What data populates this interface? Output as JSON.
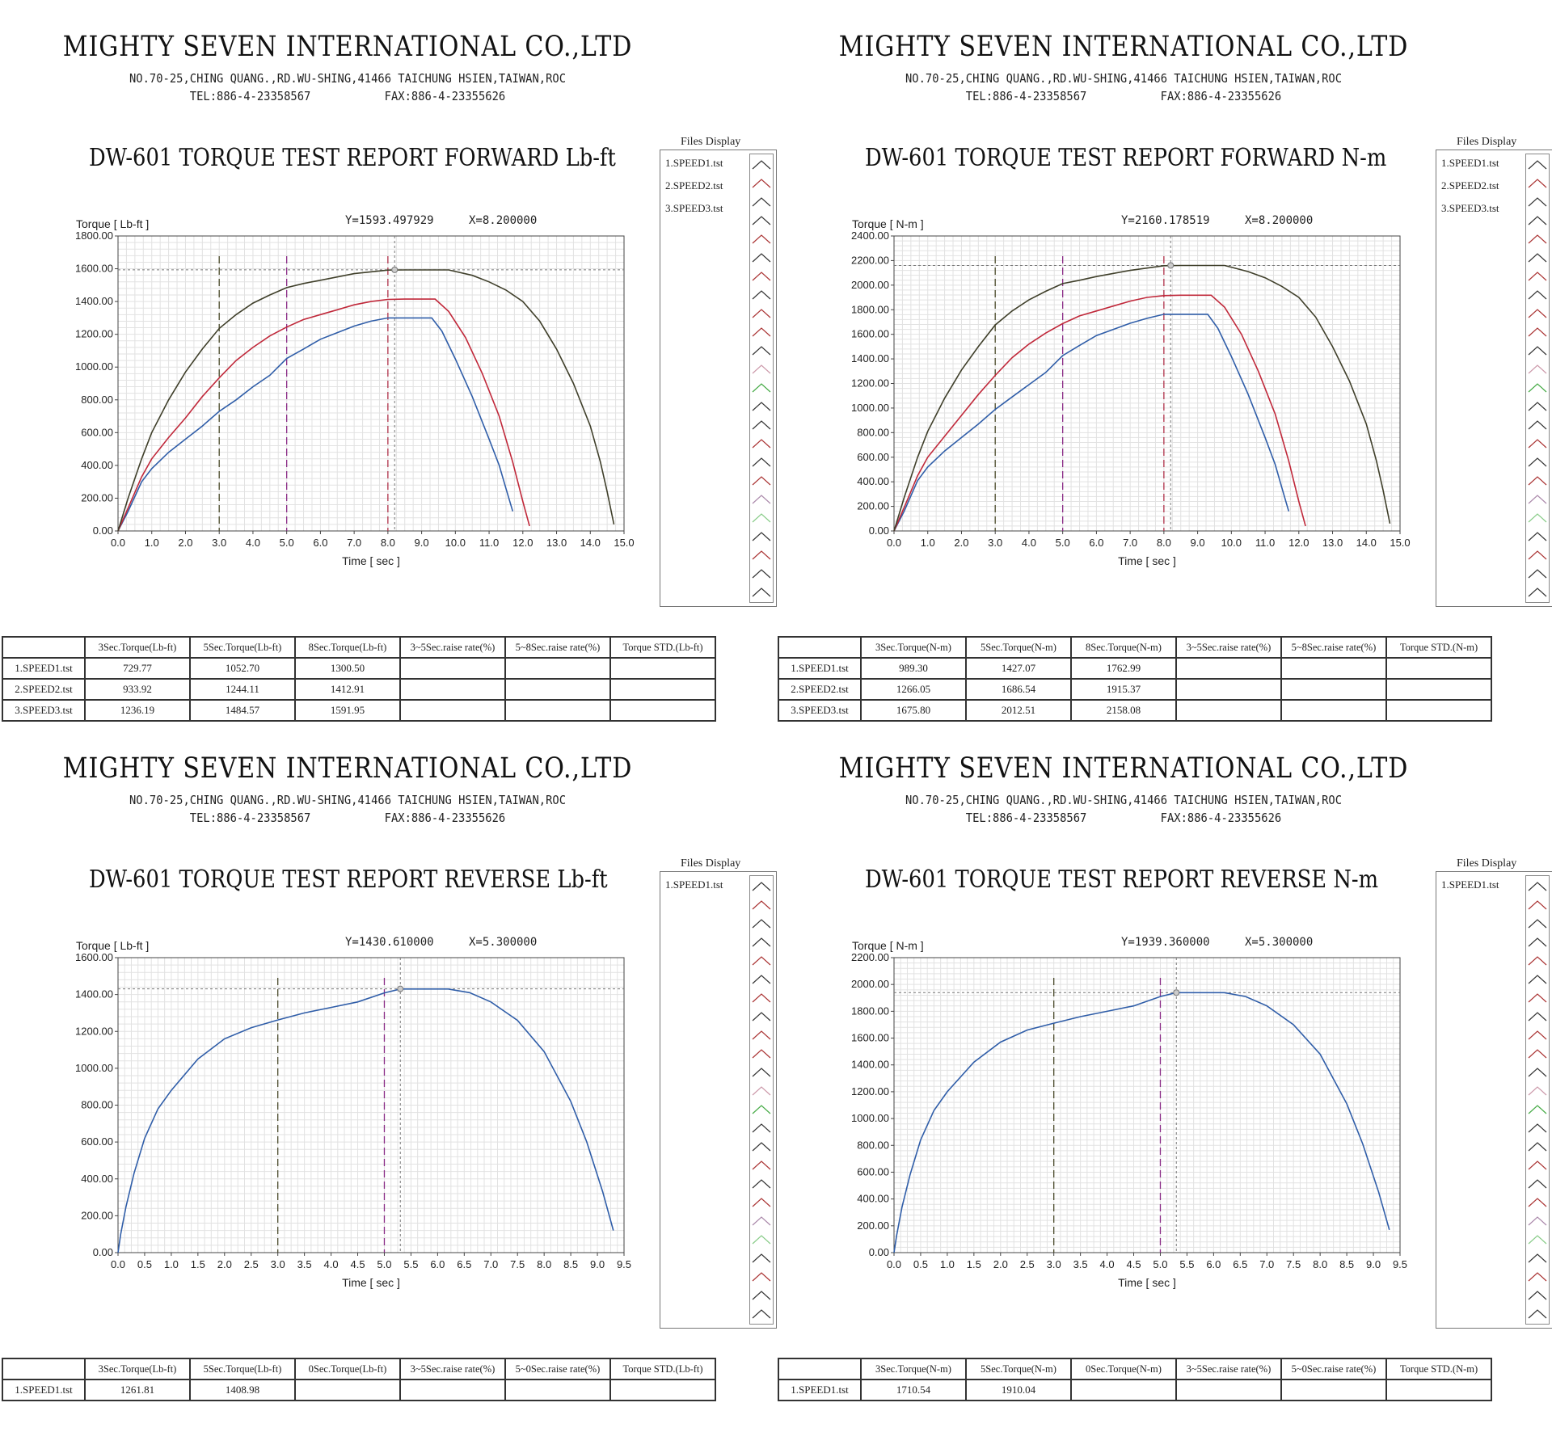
{
  "company": {
    "name": "MIGHTY SEVEN INTERNATIONAL CO.,LTD",
    "address": "NO.70-25,CHING QUANG.,RD.WU-SHING,41466 TAICHUNG HSIEN,TAIWAN,ROC",
    "tel": "TEL:886-4-23358567",
    "fax": "FAX:886-4-23355626"
  },
  "files_display_label": "Files Display",
  "panels": [
    {
      "title": "DW-601 TORQUE TEST REPORT FORWARD Lb-ft",
      "readout_y": "Y=1593.497929",
      "readout_x": "X=8.200000",
      "files": [
        "1.SPEED1.tst",
        "2.SPEED2.tst",
        "3.SPEED3.tst"
      ],
      "table": {
        "headers": [
          "",
          "3Sec.Torque(Lb-ft)",
          "5Sec.Torque(Lb-ft)",
          "8Sec.Torque(Lb-ft)",
          "3~5Sec.raise rate(%)",
          "5~8Sec.raise rate(%)",
          "Torque STD.(Lb-ft)"
        ],
        "rows": [
          [
            "1.SPEED1.tst",
            "729.77",
            "1052.70",
            "1300.50",
            "",
            "",
            ""
          ],
          [
            "2.SPEED2.tst",
            "933.92",
            "1244.11",
            "1412.91",
            "",
            "",
            ""
          ],
          [
            "3.SPEED3.tst",
            "1236.19",
            "1484.57",
            "1591.95",
            "",
            "",
            ""
          ]
        ]
      }
    },
    {
      "title": "DW-601 TORQUE TEST REPORT FORWARD N-m",
      "readout_y": "Y=2160.178519",
      "readout_x": "X=8.200000",
      "files": [
        "1.SPEED1.tst",
        "2.SPEED2.tst",
        "3.SPEED3.tst"
      ],
      "table": {
        "headers": [
          "",
          "3Sec.Torque(N-m)",
          "5Sec.Torque(N-m)",
          "8Sec.Torque(N-m)",
          "3~5Sec.raise rate(%)",
          "5~8Sec.raise rate(%)",
          "Torque STD.(N-m)"
        ],
        "rows": [
          [
            "1.SPEED1.tst",
            "989.30",
            "1427.07",
            "1762.99",
            "",
            "",
            ""
          ],
          [
            "2.SPEED2.tst",
            "1266.05",
            "1686.54",
            "1915.37",
            "",
            "",
            ""
          ],
          [
            "3.SPEED3.tst",
            "1675.80",
            "2012.51",
            "2158.08",
            "",
            "",
            ""
          ]
        ]
      }
    },
    {
      "title": "DW-601 TORQUE TEST REPORT REVERSE Lb-ft",
      "readout_y": "Y=1430.610000",
      "readout_x": "X=5.300000",
      "files": [
        "1.SPEED1.tst"
      ],
      "table": {
        "headers": [
          "",
          "3Sec.Torque(Lb-ft)",
          "5Sec.Torque(Lb-ft)",
          "0Sec.Torque(Lb-ft)",
          "3~5Sec.raise rate(%)",
          "5~0Sec.raise rate(%)",
          "Torque STD.(Lb-ft)"
        ],
        "rows": [
          [
            "1.SPEED1.tst",
            "1261.81",
            "1408.98",
            "",
            "",
            "",
            ""
          ]
        ]
      }
    },
    {
      "title": "DW-601 TORQUE TEST REPORT REVERSE N-m",
      "readout_y": "Y=1939.360000",
      "readout_x": "X=5.300000",
      "files": [
        "1.SPEED1.tst"
      ],
      "table": {
        "headers": [
          "",
          "3Sec.Torque(N-m)",
          "5Sec.Torque(N-m)",
          "0Sec.Torque(N-m)",
          "3~5Sec.raise rate(%)",
          "5~0Sec.raise rate(%)",
          "Torque STD.(N-m)"
        ],
        "rows": [
          [
            "1.SPEED1.tst",
            "1710.54",
            "1910.04",
            "",
            "",
            "",
            ""
          ]
        ]
      }
    }
  ],
  "chart_data": [
    {
      "type": "line",
      "ylabel": "Torque [ Lb-ft ]",
      "xlabel": "Time [ sec ]",
      "xlim": [
        0,
        15
      ],
      "ylim": [
        0,
        1800
      ],
      "xticks": [
        "0.0",
        "1.0",
        "2.0",
        "3.0",
        "4.0",
        "5.0",
        "6.0",
        "7.0",
        "8.0",
        "9.0",
        "10.0",
        "11.0",
        "12.0",
        "13.0",
        "14.0",
        "15.0"
      ],
      "yticks": [
        "0.00",
        "200.00",
        "400.00",
        "600.00",
        "800.00",
        "1000.00",
        "1200.00",
        "1400.00",
        "1600.00",
        "1800.00"
      ],
      "markers": [
        3,
        5,
        8
      ],
      "crosshair": {
        "x": 8.2,
        "y": 1593.5
      },
      "colors": [
        "#2f5da8",
        "#c0283a",
        "#3f3f2a"
      ],
      "series": [
        {
          "x": [
            0,
            0.3,
            0.7,
            1,
            1.5,
            2,
            2.5,
            3,
            3.5,
            4,
            4.5,
            5,
            5.5,
            6,
            6.5,
            7,
            7.5,
            8,
            8.5,
            9,
            9.3,
            9.6,
            10,
            10.5,
            11,
            11.3,
            11.5,
            11.7
          ],
          "y": [
            0,
            120,
            300,
            380,
            480,
            560,
            640,
            730,
            800,
            880,
            950,
            1053,
            1110,
            1170,
            1210,
            1250,
            1280,
            1300,
            1300,
            1300,
            1300,
            1220,
            1050,
            820,
            560,
            400,
            260,
            120
          ]
        },
        {
          "x": [
            0,
            0.3,
            0.7,
            1,
            1.5,
            2,
            2.5,
            3,
            3.5,
            4,
            4.5,
            5,
            5.5,
            6,
            6.5,
            7,
            7.5,
            8,
            8.5,
            9,
            9.4,
            9.8,
            10.3,
            10.8,
            11.3,
            11.7,
            12,
            12.2
          ],
          "y": [
            0,
            140,
            330,
            440,
            570,
            690,
            820,
            934,
            1040,
            1120,
            1190,
            1244,
            1290,
            1320,
            1350,
            1380,
            1400,
            1413,
            1415,
            1415,
            1415,
            1340,
            1180,
            960,
            700,
            420,
            180,
            30
          ]
        },
        {
          "x": [
            0,
            0.3,
            0.7,
            1,
            1.5,
            2,
            2.5,
            3,
            3.5,
            4,
            4.5,
            5,
            5.5,
            6,
            7,
            8,
            8.5,
            9,
            9.8,
            10.5,
            11,
            11.5,
            12,
            12.5,
            13,
            13.5,
            14,
            14.3,
            14.5,
            14.7
          ],
          "y": [
            0,
            200,
            440,
            600,
            800,
            970,
            1110,
            1236,
            1320,
            1390,
            1440,
            1485,
            1510,
            1530,
            1570,
            1592,
            1593,
            1593,
            1593,
            1560,
            1520,
            1470,
            1400,
            1280,
            1110,
            900,
            640,
            420,
            240,
            40
          ]
        }
      ]
    },
    {
      "type": "line",
      "ylabel": "Torque [ N-m ]",
      "xlabel": "Time [ sec ]",
      "xlim": [
        0,
        15
      ],
      "ylim": [
        0,
        2400
      ],
      "xticks": [
        "0.0",
        "1.0",
        "2.0",
        "3.0",
        "4.0",
        "5.0",
        "6.0",
        "7.0",
        "8.0",
        "9.0",
        "10.0",
        "11.0",
        "12.0",
        "13.0",
        "14.0",
        "15.0"
      ],
      "yticks": [
        "0.00",
        "200.00",
        "400.00",
        "600.00",
        "800.00",
        "1000.00",
        "1200.00",
        "1400.00",
        "1600.00",
        "1800.00",
        "2000.00",
        "2200.00",
        "2400.00"
      ],
      "markers": [
        3,
        5,
        8
      ],
      "crosshair": {
        "x": 8.2,
        "y": 2160.18
      },
      "colors": [
        "#2f5da8",
        "#c0283a",
        "#3f3f2a"
      ],
      "series": [
        {
          "x": [
            0,
            0.3,
            0.7,
            1,
            1.5,
            2,
            2.5,
            3,
            3.5,
            4,
            4.5,
            5,
            5.5,
            6,
            6.5,
            7,
            7.5,
            8,
            8.5,
            9,
            9.3,
            9.6,
            10,
            10.5,
            11,
            11.3,
            11.5,
            11.7
          ],
          "y": [
            0,
            160,
            410,
            520,
            650,
            760,
            870,
            989,
            1090,
            1190,
            1290,
            1427,
            1510,
            1590,
            1640,
            1690,
            1730,
            1763,
            1763,
            1763,
            1763,
            1650,
            1420,
            1110,
            760,
            540,
            350,
            160
          ]
        },
        {
          "x": [
            0,
            0.3,
            0.7,
            1,
            1.5,
            2,
            2.5,
            3,
            3.5,
            4,
            4.5,
            5,
            5.5,
            6,
            6.5,
            7,
            7.5,
            8,
            8.5,
            9,
            9.4,
            9.8,
            10.3,
            10.8,
            11.3,
            11.7,
            12,
            12.2
          ],
          "y": [
            0,
            190,
            450,
            600,
            770,
            940,
            1110,
            1266,
            1410,
            1520,
            1610,
            1687,
            1750,
            1790,
            1830,
            1870,
            1900,
            1915,
            1918,
            1918,
            1918,
            1820,
            1600,
            1300,
            950,
            570,
            240,
            40
          ]
        },
        {
          "x": [
            0,
            0.3,
            0.7,
            1,
            1.5,
            2,
            2.5,
            3,
            3.5,
            4,
            4.5,
            5,
            5.5,
            6,
            7,
            8,
            8.5,
            9,
            9.8,
            10.5,
            11,
            11.5,
            12,
            12.5,
            13,
            13.5,
            14,
            14.3,
            14.5,
            14.7
          ],
          "y": [
            0,
            270,
            600,
            810,
            1080,
            1310,
            1500,
            1676,
            1790,
            1880,
            1950,
            2013,
            2040,
            2070,
            2120,
            2158,
            2160,
            2160,
            2160,
            2110,
            2060,
            1990,
            1900,
            1740,
            1500,
            1220,
            870,
            570,
            330,
            60
          ]
        }
      ]
    },
    {
      "type": "line",
      "ylabel": "Torque [ Lb-ft ]",
      "xlabel": "Time [ sec ]",
      "xlim": [
        0,
        9.5
      ],
      "ylim": [
        0,
        1600
      ],
      "xticks": [
        "0.0",
        "0.5",
        "1.0",
        "1.5",
        "2.0",
        "2.5",
        "3.0",
        "3.5",
        "4.0",
        "4.5",
        "5.0",
        "5.5",
        "6.0",
        "6.5",
        "7.0",
        "7.5",
        "8.0",
        "8.5",
        "9.0",
        "9.5"
      ],
      "yticks": [
        "0.00",
        "200.00",
        "400.00",
        "600.00",
        "800.00",
        "1000.00",
        "1200.00",
        "1400.00",
        "1600.00"
      ],
      "markers": [
        3,
        5
      ],
      "crosshair": {
        "x": 5.3,
        "y": 1430.61
      },
      "colors": [
        "#2f5da8"
      ],
      "series": [
        {
          "x": [
            0,
            0.05,
            0.15,
            0.3,
            0.5,
            0.75,
            1,
            1.5,
            2,
            2.5,
            3,
            3.5,
            4,
            4.5,
            5,
            5.3,
            5.7,
            6.2,
            6.6,
            7,
            7.5,
            8,
            8.5,
            8.8,
            9.1,
            9.3
          ],
          "y": [
            0,
            100,
            250,
            430,
            620,
            780,
            880,
            1050,
            1160,
            1220,
            1262,
            1300,
            1330,
            1360,
            1409,
            1430,
            1430,
            1430,
            1410,
            1360,
            1260,
            1090,
            820,
            600,
            330,
            120
          ]
        }
      ]
    },
    {
      "type": "line",
      "ylabel": "Torque [ N-m ]",
      "xlabel": "Time [ sec ]",
      "xlim": [
        0,
        9.5
      ],
      "ylim": [
        0,
        2200
      ],
      "xticks": [
        "0.0",
        "0.5",
        "1.0",
        "1.5",
        "2.0",
        "2.5",
        "3.0",
        "3.5",
        "4.0",
        "4.5",
        "5.0",
        "5.5",
        "6.0",
        "6.5",
        "7.0",
        "7.5",
        "8.0",
        "8.5",
        "9.0",
        "9.5"
      ],
      "yticks": [
        "0.00",
        "200.00",
        "400.00",
        "600.00",
        "800.00",
        "1000.00",
        "1200.00",
        "1400.00",
        "1600.00",
        "1800.00",
        "2000.00",
        "2200.00"
      ],
      "markers": [
        3,
        5
      ],
      "crosshair": {
        "x": 5.3,
        "y": 1939.36
      },
      "colors": [
        "#2f5da8"
      ],
      "series": [
        {
          "x": [
            0,
            0.05,
            0.15,
            0.3,
            0.5,
            0.75,
            1,
            1.5,
            2,
            2.5,
            3,
            3.5,
            4,
            4.5,
            5,
            5.3,
            5.7,
            6.2,
            6.6,
            7,
            7.5,
            8,
            8.5,
            8.8,
            9.1,
            9.3
          ],
          "y": [
            0,
            130,
            340,
            580,
            840,
            1060,
            1200,
            1420,
            1570,
            1660,
            1711,
            1760,
            1800,
            1840,
            1910,
            1939,
            1939,
            1939,
            1910,
            1840,
            1700,
            1480,
            1110,
            810,
            450,
            170
          ]
        }
      ]
    }
  ]
}
